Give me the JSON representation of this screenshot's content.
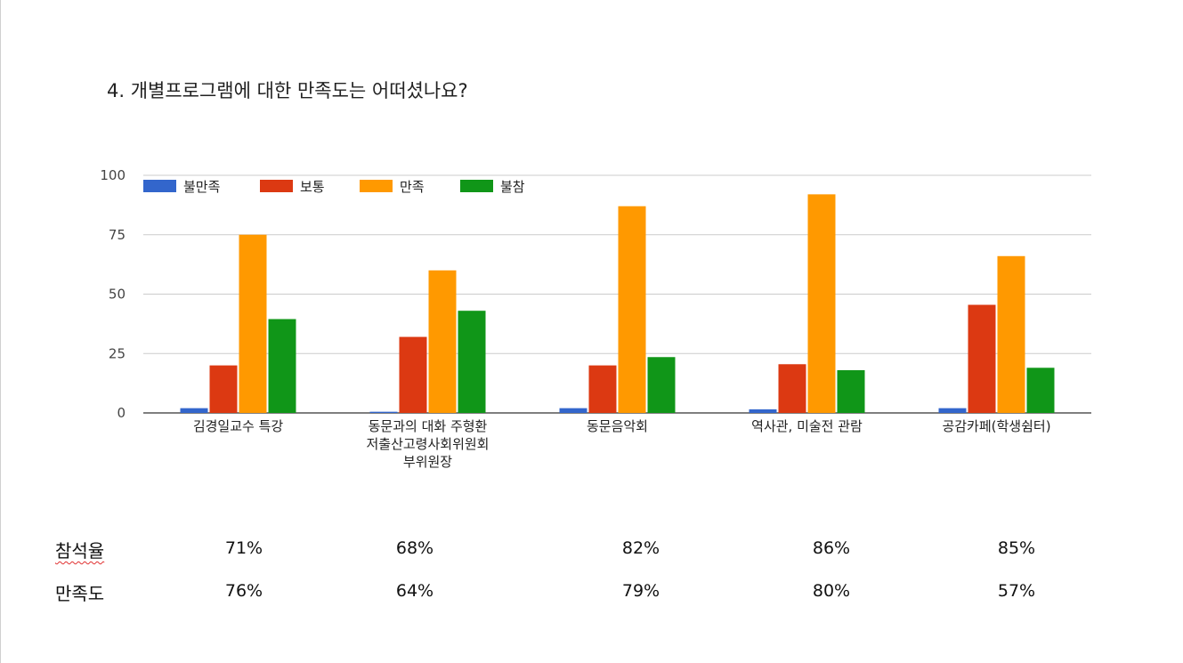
{
  "title": "4. 개별프로그램에 대한 만족도는 어떠셨나요?",
  "chart_data": {
    "type": "bar",
    "categories": [
      [
        "김경일교수 특강"
      ],
      [
        "동문과의 대화 주형환",
        "저출산고령사회위원회",
        "부위원장"
      ],
      [
        "동문음악회"
      ],
      [
        "역사관, 미술전 관람"
      ],
      [
        "공감카페(학생쉼터)"
      ]
    ],
    "series": [
      {
        "name": "불만족",
        "color": "#3366cc",
        "values": [
          2,
          0.5,
          2,
          1.5,
          2
        ]
      },
      {
        "name": "보통",
        "color": "#dc3912",
        "values": [
          20,
          32,
          20,
          20.5,
          45.5
        ]
      },
      {
        "name": "만족",
        "color": "#ff9900",
        "values": [
          75,
          60,
          87,
          92,
          66
        ]
      },
      {
        "name": "불참",
        "color": "#109618",
        "values": [
          39.5,
          43,
          23.5,
          18,
          19
        ]
      }
    ],
    "ylim": [
      0,
      100
    ],
    "yticks": [
      "0",
      "25",
      "50",
      "75",
      "100"
    ],
    "legend_position": "top-left",
    "grid": true
  },
  "stats": {
    "attendance_label": "참석율",
    "satisfaction_label": "만족도",
    "attendance_values": [
      "71%",
      "68%",
      "82%",
      "86%",
      "85%"
    ],
    "satisfaction_values": [
      "76%",
      "64%",
      "79%",
      "80%",
      "57%"
    ]
  }
}
